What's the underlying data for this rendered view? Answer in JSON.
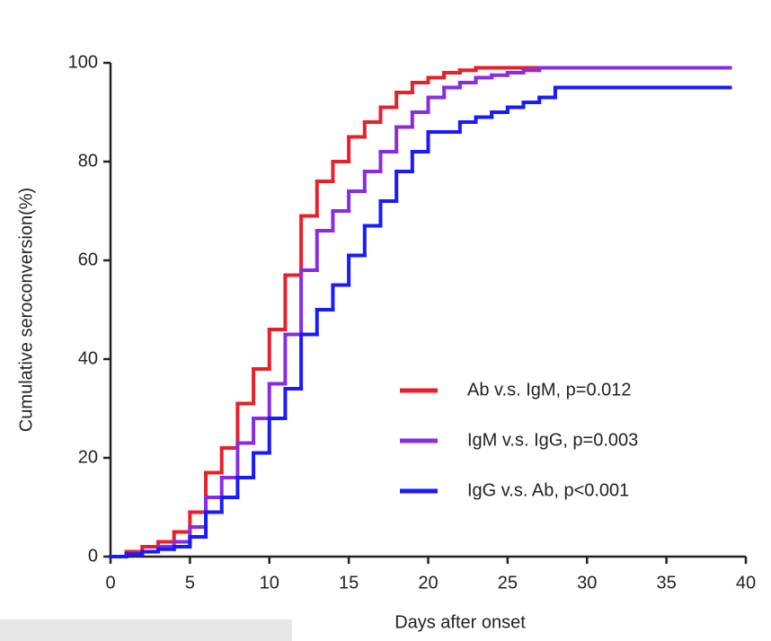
{
  "chart_data": {
    "type": "step",
    "x_label": "Days after onset",
    "y_label": "Cumulative seroconversion(%)",
    "x": [
      0,
      1,
      2,
      3,
      4,
      5,
      6,
      7,
      8,
      9,
      10,
      11,
      12,
      13,
      14,
      15,
      16,
      17,
      18,
      19,
      20,
      21,
      22,
      23,
      24,
      25,
      26,
      27,
      28,
      29,
      30,
      31,
      32,
      33,
      34,
      35,
      36,
      37,
      38,
      39
    ],
    "series": [
      {
        "name": "Ab v.s. IgM, p=0.012",
        "color": "#e8202a",
        "values": [
          0,
          1,
          2,
          3,
          5,
          9,
          17,
          22,
          31,
          38,
          46,
          57,
          69,
          76,
          80,
          85,
          88,
          91,
          94,
          96,
          97,
          98,
          98.5,
          99,
          99,
          99,
          99,
          99,
          99,
          99,
          99,
          99,
          99,
          99,
          99,
          99,
          99,
          99,
          99,
          99
        ]
      },
      {
        "name": "IgM v.s. IgG, p=0.003",
        "color": "#8a2be2",
        "values": [
          0,
          0.5,
          1,
          2,
          3,
          6,
          12,
          16,
          23,
          28,
          35,
          45,
          58,
          66,
          70,
          74,
          78,
          82,
          87,
          90,
          93,
          95,
          96,
          97,
          97.5,
          98,
          98.5,
          99,
          99,
          99,
          99,
          99,
          99,
          99,
          99,
          99,
          99,
          99,
          99,
          99
        ]
      },
      {
        "name": "IgG v.s. Ab, p<0.001",
        "color": "#1a1aff",
        "values": [
          0,
          0.5,
          1,
          1.5,
          2,
          4,
          9,
          12,
          16,
          21,
          28,
          34,
          45,
          50,
          55,
          61,
          67,
          72,
          78,
          82,
          86,
          86,
          88,
          89,
          90,
          91,
          92,
          93,
          95,
          95,
          95,
          95,
          95,
          95,
          95,
          95,
          95,
          95,
          95,
          95
        ]
      }
    ],
    "xlim": [
      0,
      40
    ],
    "xticks": [
      0,
      5,
      10,
      15,
      20,
      25,
      30,
      35,
      40
    ],
    "ylim": [
      0,
      100
    ],
    "yticks": [
      0,
      20,
      40,
      60,
      80,
      100
    ],
    "legend": "lower-right"
  }
}
